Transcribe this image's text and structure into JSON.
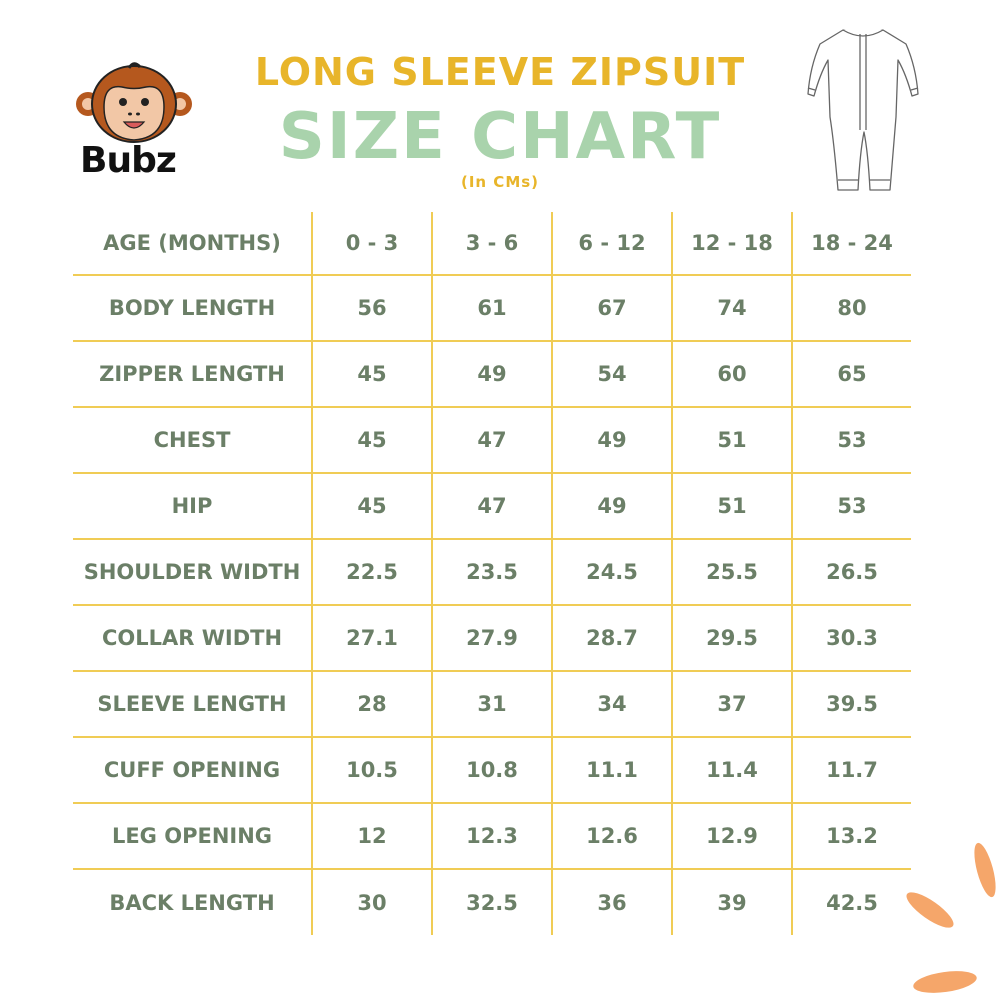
{
  "brand": {
    "name": "Bubz"
  },
  "header": {
    "title": "LONG SLEEVE ZIPSUIT",
    "subtitle": "SIZE CHART",
    "unit": "(In CMs)"
  },
  "colors": {
    "title": "#e8b52a",
    "subtitle": "#a9d3ac",
    "text": "#6b7f67",
    "grid": "#f0cc55",
    "deco": "#f5a66a"
  },
  "icons": {
    "logo": "monkey-logo-icon",
    "garment": "zipsuit-icon"
  },
  "table": {
    "header_label": "AGE (MONTHS)",
    "ages": [
      "0 - 3",
      "3 - 6",
      "6 - 12",
      "12 - 18",
      "18 - 24"
    ],
    "rows": [
      {
        "label": "BODY LENGTH",
        "values": [
          "56",
          "61",
          "67",
          "74",
          "80"
        ]
      },
      {
        "label": "ZIPPER LENGTH",
        "values": [
          "45",
          "49",
          "54",
          "60",
          "65"
        ]
      },
      {
        "label": "CHEST",
        "values": [
          "45",
          "47",
          "49",
          "51",
          "53"
        ]
      },
      {
        "label": "HIP",
        "values": [
          "45",
          "47",
          "49",
          "51",
          "53"
        ]
      },
      {
        "label": "SHOULDER WIDTH",
        "values": [
          "22.5",
          "23.5",
          "24.5",
          "25.5",
          "26.5"
        ]
      },
      {
        "label": "COLLAR WIDTH",
        "values": [
          "27.1",
          "27.9",
          "28.7",
          "29.5",
          "30.3"
        ]
      },
      {
        "label": "SLEEVE LENGTH",
        "values": [
          "28",
          "31",
          "34",
          "37",
          "39.5"
        ]
      },
      {
        "label": "CUFF OPENING",
        "values": [
          "10.5",
          "10.8",
          "11.1",
          "11.4",
          "11.7"
        ]
      },
      {
        "label": "LEG OPENING",
        "values": [
          "12",
          "12.3",
          "12.6",
          "12.9",
          "13.2"
        ]
      },
      {
        "label": "BACK LENGTH",
        "values": [
          "30",
          "32.5",
          "36",
          "39",
          "42.5"
        ]
      }
    ]
  }
}
